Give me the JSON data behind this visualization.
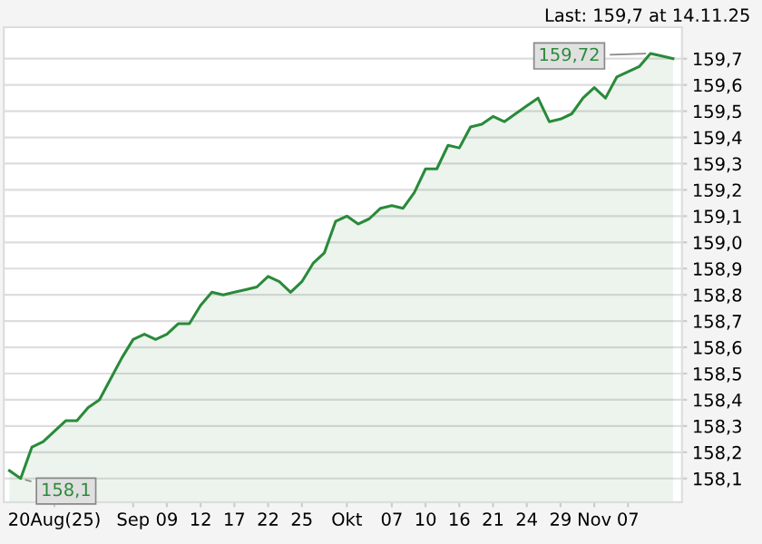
{
  "chart_data": {
    "type": "area",
    "categories": [
      null,
      null,
      null,
      null,
      "20Aug(25)",
      null,
      null,
      null,
      null,
      null,
      null,
      "Sep",
      null,
      null,
      "09",
      null,
      null,
      "12",
      null,
      null,
      "17",
      null,
      null,
      "22",
      null,
      null,
      "25",
      null,
      null,
      null,
      "Okt",
      null,
      null,
      null,
      "07",
      null,
      null,
      "10",
      null,
      null,
      "16",
      null,
      null,
      "21",
      null,
      null,
      "24",
      null,
      null,
      "29",
      null,
      null,
      "Nov",
      null,
      null,
      "07",
      null,
      null,
      null,
      null
    ],
    "series": [
      {
        "color": "#2a8a3a",
        "values": [
          158.13,
          158.1,
          158.22,
          158.24,
          158.28,
          158.32,
          158.32,
          158.37,
          158.4,
          158.48,
          158.56,
          158.63,
          158.65,
          158.63,
          158.65,
          158.69,
          158.69,
          158.76,
          158.81,
          158.8,
          158.81,
          158.82,
          158.83,
          158.87,
          158.85,
          158.81,
          158.85,
          158.92,
          158.96,
          159.08,
          159.1,
          159.07,
          159.09,
          159.13,
          159.14,
          159.13,
          159.19,
          159.28,
          159.28,
          159.37,
          159.36,
          159.44,
          159.45,
          159.48,
          159.46,
          159.49,
          159.52,
          159.55,
          159.46,
          159.47,
          159.49,
          159.55,
          159.59,
          159.55,
          159.63,
          159.65,
          159.67,
          159.72,
          159.71,
          159.7
        ],
        "value_labels": [
          null,
          "158,1",
          null,
          null,
          null,
          null,
          null,
          null,
          null,
          null,
          null,
          null,
          null,
          null,
          null,
          null,
          null,
          null,
          null,
          null,
          null,
          null,
          null,
          null,
          null,
          null,
          null,
          null,
          null,
          null,
          null,
          null,
          null,
          null,
          null,
          null,
          null,
          null,
          null,
          null,
          null,
          null,
          null,
          null,
          null,
          null,
          null,
          null,
          null,
          null,
          null,
          null,
          null,
          null,
          null,
          null,
          null,
          "159,72",
          null,
          null
        ]
      }
    ],
    "ylim": [
      158.01,
      159.82
    ],
    "yticks": [
      {
        "value": 158.1,
        "label": "158,1"
      },
      {
        "value": 158.2,
        "label": "158,2"
      },
      {
        "value": 158.3,
        "label": "158,3"
      },
      {
        "value": 158.4,
        "label": "158,4"
      },
      {
        "value": 158.5,
        "label": "158,5"
      },
      {
        "value": 158.6,
        "label": "158,6"
      },
      {
        "value": 158.7,
        "label": "158,7"
      },
      {
        "value": 158.8,
        "label": "158,8"
      },
      {
        "value": 158.9,
        "label": "158,9"
      },
      {
        "value": 159.0,
        "label": "159,0"
      },
      {
        "value": 159.1,
        "label": "159,1"
      },
      {
        "value": 159.2,
        "label": "159,2"
      },
      {
        "value": 159.3,
        "label": "159,3"
      },
      {
        "value": 159.4,
        "label": "159,4"
      },
      {
        "value": 159.5,
        "label": "159,5"
      },
      {
        "value": 159.6,
        "label": "159,6"
      },
      {
        "value": 159.7,
        "label": "159,7"
      }
    ],
    "grid": "y",
    "annotations": [
      "Last: 159,7 at 14.11.25"
    ]
  }
}
